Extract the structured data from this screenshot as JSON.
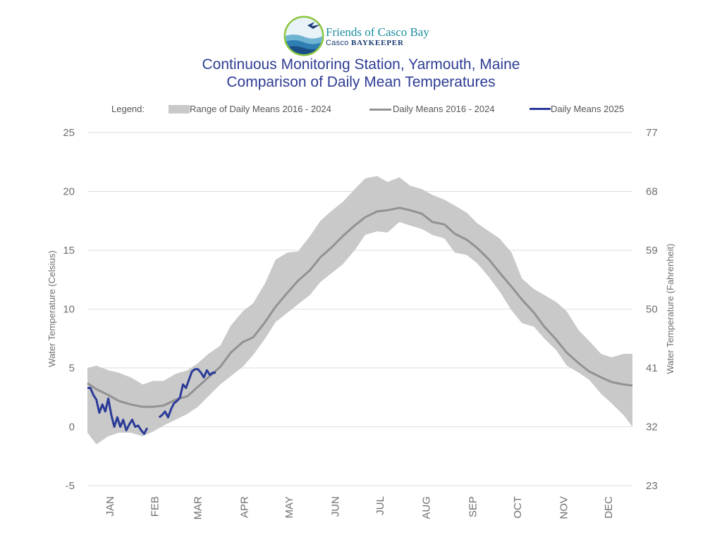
{
  "logo": {
    "name": "Friends of Casco Bay",
    "sub_a": "Casco",
    "sub_b": "BAYKEEPER"
  },
  "colors": {
    "range_fill": "#c9c9c9",
    "mean_2016_2024": "#929292",
    "mean_2025": "#2b3a98",
    "title": "#2e3c94",
    "gridline": "#dedede"
  },
  "chart_data": {
    "type": "line",
    "title": "Continuous Monitoring Station, Yarmouth, Maine",
    "subtitle": "Comparison of Daily Mean Temperatures",
    "legend_title": "Legend:",
    "legend_placement": "top",
    "ylabel": "Water Temperature (Celsius)",
    "y2label": "Water Temperature (Fahrenheit)",
    "ylim": [
      -5,
      25
    ],
    "yticks": [
      -5,
      0,
      5,
      10,
      15,
      20,
      25
    ],
    "y2lim": [
      23,
      77
    ],
    "y2ticks": [
      23,
      32,
      41,
      50,
      59,
      68,
      77
    ],
    "grid": true,
    "xlim": [
      1,
      366
    ],
    "month_labels": [
      "JAN",
      "FEB",
      "MAR",
      "APR",
      "MAY",
      "JUN",
      "JUL",
      "AUG",
      "SEP",
      "OCT",
      "NOV",
      "DEC"
    ],
    "month_label_days": [
      16,
      46,
      75,
      106,
      136,
      167,
      197,
      228,
      259,
      289,
      320,
      350
    ],
    "series": [
      {
        "name": "Range of Daily Means 2016 - 2024",
        "kind": "band",
        "x": [
          1,
          7,
          15,
          22,
          30,
          38,
          45,
          52,
          60,
          68,
          75,
          82,
          90,
          97,
          105,
          112,
          120,
          127,
          135,
          142,
          150,
          157,
          165,
          172,
          180,
          187,
          195,
          202,
          210,
          217,
          225,
          232,
          240,
          247,
          255,
          262,
          270,
          277,
          285,
          292,
          300,
          307,
          315,
          322,
          330,
          337,
          345,
          352,
          360,
          366
        ],
        "low": [
          -0.5,
          -1.5,
          -0.8,
          -0.5,
          -0.5,
          -0.8,
          -0.4,
          0.1,
          0.6,
          1.1,
          1.7,
          2.6,
          3.6,
          4.3,
          5.1,
          6.1,
          7.5,
          8.9,
          9.7,
          10.4,
          11.2,
          12.3,
          13.1,
          13.8,
          15.0,
          16.3,
          16.6,
          16.5,
          17.4,
          17.1,
          16.8,
          16.3,
          16.0,
          14.8,
          14.6,
          13.9,
          12.7,
          11.5,
          9.9,
          8.8,
          8.5,
          7.5,
          6.5,
          5.2,
          4.6,
          4.0,
          2.8,
          2.0,
          1.0,
          0.0
        ],
        "high": [
          5.0,
          5.2,
          4.8,
          4.6,
          4.2,
          3.6,
          3.9,
          3.9,
          4.5,
          4.8,
          5.4,
          6.2,
          6.9,
          8.6,
          9.8,
          10.5,
          12.2,
          14.2,
          14.8,
          14.9,
          16.2,
          17.5,
          18.4,
          19.1,
          20.2,
          21.1,
          21.3,
          20.8,
          21.2,
          20.5,
          20.2,
          19.7,
          19.3,
          18.8,
          18.2,
          17.3,
          16.6,
          16.0,
          14.8,
          12.6,
          11.7,
          11.2,
          10.6,
          9.8,
          8.2,
          7.3,
          6.2,
          5.9,
          6.2,
          6.2
        ]
      },
      {
        "name": "Daily Means 2016 - 2024",
        "kind": "line",
        "x": [
          1,
          7,
          15,
          22,
          30,
          38,
          45,
          52,
          60,
          68,
          75,
          82,
          90,
          97,
          105,
          112,
          120,
          127,
          135,
          142,
          150,
          157,
          165,
          172,
          180,
          187,
          195,
          202,
          210,
          217,
          225,
          232,
          240,
          247,
          255,
          262,
          270,
          277,
          285,
          292,
          300,
          307,
          315,
          322,
          330,
          337,
          345,
          352,
          360,
          366
        ],
        "values": [
          3.7,
          3.2,
          2.7,
          2.2,
          1.9,
          1.7,
          1.7,
          1.8,
          2.3,
          2.6,
          3.4,
          4.2,
          5.1,
          6.3,
          7.2,
          7.6,
          8.9,
          10.2,
          11.4,
          12.4,
          13.3,
          14.4,
          15.3,
          16.2,
          17.1,
          17.8,
          18.3,
          18.4,
          18.6,
          18.4,
          18.1,
          17.4,
          17.2,
          16.4,
          15.9,
          15.2,
          14.2,
          13.1,
          11.9,
          10.8,
          9.7,
          8.5,
          7.4,
          6.3,
          5.4,
          4.7,
          4.2,
          3.8,
          3.6,
          3.5
        ]
      },
      {
        "name": "Daily Means 2025",
        "kind": "line",
        "x": [
          1,
          3,
          5,
          7,
          9,
          11,
          13,
          15,
          17,
          19,
          21,
          23,
          25,
          27,
          29,
          31,
          33,
          35,
          37,
          39,
          41,
          43,
          45,
          47,
          49,
          51,
          53,
          55,
          57,
          59,
          61,
          63,
          65,
          67,
          69,
          71,
          73,
          75,
          77,
          79,
          81,
          83,
          85,
          87
        ],
        "values": [
          3.3,
          3.3,
          2.7,
          2.3,
          1.2,
          1.9,
          1.3,
          2.4,
          1.0,
          0.0,
          0.8,
          0.0,
          0.6,
          -0.3,
          0.2,
          0.6,
          0.0,
          0.1,
          -0.3,
          -0.6,
          -0.1,
          null,
          null,
          null,
          0.8,
          1.0,
          1.3,
          0.8,
          1.5,
          2.0,
          2.2,
          2.5,
          3.6,
          3.3,
          4.0,
          4.7,
          4.9,
          4.9,
          4.6,
          4.2,
          4.8,
          4.4,
          4.6,
          4.6
        ]
      }
    ]
  }
}
